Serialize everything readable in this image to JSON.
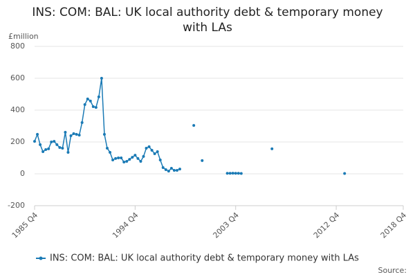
{
  "chart_data": {
    "type": "line",
    "title": [
      "INS: COM: BAL: UK local authority debt & temporary money",
      "with LAs"
    ],
    "y_axis_label": "£million",
    "source": "Source:",
    "categories": [
      "1985 Q4",
      null,
      null,
      null,
      null,
      null,
      null,
      null,
      null,
      null,
      null,
      null,
      null,
      null,
      null,
      null,
      null,
      null,
      null,
      null,
      null,
      null,
      null,
      null,
      null,
      null,
      null,
      null,
      null,
      null,
      null,
      null,
      null,
      null,
      null,
      null,
      "1994 Q4",
      null,
      null,
      null,
      null,
      null,
      null,
      null,
      null,
      null,
      null,
      null,
      null,
      null,
      null,
      null,
      null,
      null,
      null,
      null,
      null,
      null,
      null,
      null,
      null,
      null,
      null,
      null,
      null,
      null,
      null,
      null,
      null,
      null,
      null,
      null,
      "2003 Q4",
      null,
      null,
      null,
      null,
      null,
      null,
      null,
      null,
      null,
      null,
      null,
      null,
      null,
      null,
      null,
      null,
      null,
      null,
      null,
      null,
      null,
      null,
      null,
      null,
      null,
      null,
      null,
      null,
      null,
      null,
      null,
      null,
      null,
      null,
      null,
      "2012 Q4",
      null,
      null,
      null,
      null,
      null,
      null,
      null,
      null,
      null,
      null,
      null,
      null,
      null,
      null,
      null,
      null,
      null,
      null,
      null,
      null,
      null,
      null,
      null,
      "2018 Q4"
    ],
    "series": [
      {
        "name": "INS: COM: BAL: UK local authority debt & temporary money with LAs",
        "color": "#1a7ab5",
        "values": [
          204,
          248,
          183,
          139,
          152,
          157,
          200,
          204,
          183,
          165,
          161,
          261,
          135,
          239,
          252,
          248,
          243,
          322,
          435,
          470,
          457,
          422,
          417,
          483,
          600,
          248,
          161,
          135,
          87,
          96,
          100,
          100,
          74,
          78,
          91,
          104,
          117,
          96,
          78,
          109,
          161,
          170,
          148,
          126,
          139,
          87,
          39,
          26,
          17,
          35,
          22,
          22,
          30,
          null,
          null,
          null,
          null,
          304,
          null,
          null,
          83,
          null,
          null,
          null,
          null,
          null,
          null,
          null,
          null,
          3,
          3,
          4,
          3,
          3,
          2,
          null,
          null,
          null,
          null,
          null,
          null,
          null,
          null,
          null,
          null,
          157,
          null,
          null,
          null,
          null,
          null,
          null,
          null,
          null,
          null,
          null,
          null,
          null,
          null,
          null,
          null,
          null,
          null,
          null,
          null,
          null,
          null,
          null,
          null,
          null,
          null,
          2,
          null,
          null,
          null,
          null,
          null,
          null,
          null,
          null,
          null,
          null,
          null,
          null,
          null,
          null,
          null,
          null,
          null,
          null,
          null,
          null,
          null
        ]
      }
    ],
    "ylim": [
      -200,
      800
    ],
    "yticks": [
      -200,
      0,
      200,
      400,
      600,
      800
    ],
    "grid": true,
    "legend": "bottom"
  }
}
